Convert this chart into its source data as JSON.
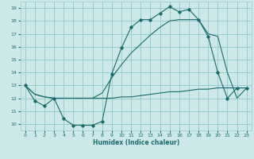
{
  "xlabel": "Humidex (Indice chaleur)",
  "bg_color": "#cce8e8",
  "grid_color": "#99cccc",
  "line_color": "#1a6b6b",
  "xlim": [
    -0.5,
    23.5
  ],
  "ylim": [
    9.5,
    19.5
  ],
  "yticks": [
    10,
    11,
    12,
    13,
    14,
    15,
    16,
    17,
    18,
    19
  ],
  "xticks": [
    0,
    1,
    2,
    3,
    4,
    5,
    6,
    7,
    8,
    9,
    10,
    11,
    12,
    13,
    14,
    15,
    16,
    17,
    18,
    19,
    20,
    21,
    22,
    23
  ],
  "line1_x": [
    0,
    1,
    2,
    3,
    4,
    5,
    6,
    7,
    8,
    9,
    10,
    11,
    12,
    13,
    14,
    15,
    16,
    17,
    18,
    19,
    20,
    21,
    22,
    23
  ],
  "line1_y": [
    13.0,
    11.8,
    11.4,
    12.0,
    10.4,
    9.9,
    9.9,
    9.9,
    10.2,
    13.9,
    15.9,
    17.5,
    18.1,
    18.1,
    18.6,
    19.1,
    18.7,
    18.9,
    18.1,
    16.8,
    14.0,
    12.0,
    12.8,
    12.8
  ],
  "line2_x": [
    0,
    1,
    2,
    3,
    4,
    5,
    6,
    7,
    8,
    9,
    10,
    11,
    12,
    13,
    14,
    15,
    16,
    17,
    18,
    19,
    20,
    21,
    22,
    23
  ],
  "line2_y": [
    13.0,
    12.3,
    12.1,
    12.0,
    12.0,
    12.0,
    12.0,
    12.0,
    12.0,
    12.0,
    12.1,
    12.1,
    12.2,
    12.3,
    12.4,
    12.5,
    12.5,
    12.6,
    12.7,
    12.7,
    12.8,
    12.8,
    12.8,
    12.8
  ],
  "line3_x": [
    0,
    1,
    2,
    3,
    4,
    5,
    6,
    7,
    8,
    9,
    10,
    11,
    12,
    13,
    14,
    15,
    16,
    17,
    18,
    19,
    20,
    21,
    22,
    23
  ],
  "line3_y": [
    13.0,
    12.3,
    12.1,
    12.0,
    12.0,
    12.0,
    12.0,
    12.0,
    12.4,
    13.6,
    14.6,
    15.5,
    16.2,
    16.9,
    17.5,
    18.0,
    18.1,
    18.1,
    18.1,
    17.0,
    16.8,
    14.0,
    12.0,
    12.8
  ]
}
